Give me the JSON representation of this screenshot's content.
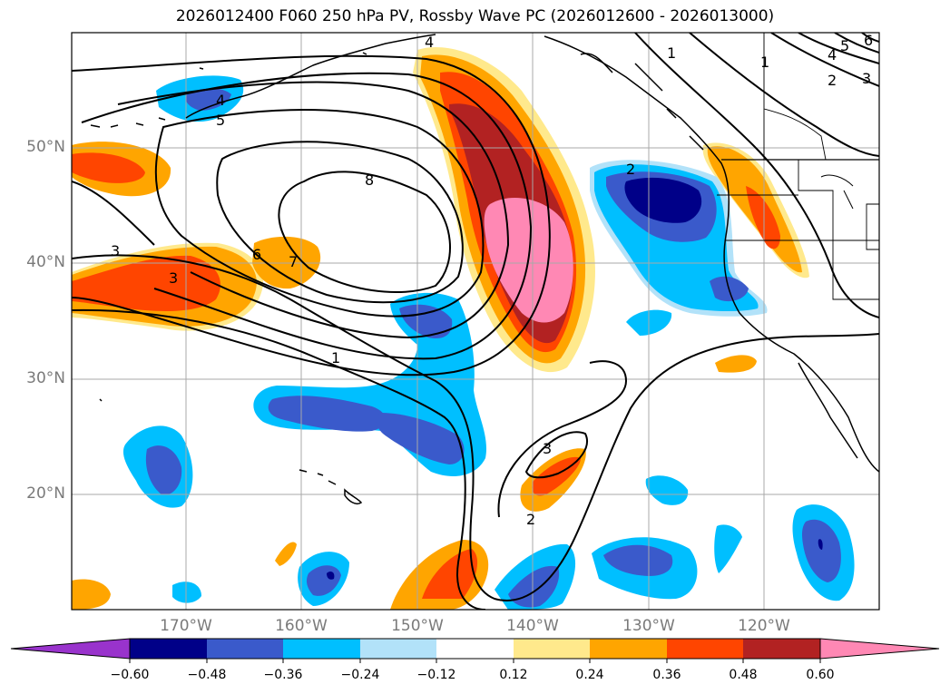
{
  "title": "2026012400 F060 250 hPa PV, Rossby Wave PC (2026012600 - 2026013000)",
  "lat_labels": [
    "50°N",
    "40°N",
    "30°N",
    "20°N"
  ],
  "lon_labels": [
    "170°W",
    "160°W",
    "150°W",
    "140°W",
    "130°W",
    "120°W"
  ],
  "contour_labels": [
    "8",
    "7",
    "6",
    "5",
    "4",
    "4",
    "3",
    "3",
    "3",
    "2",
    "2",
    "2",
    "1",
    "1",
    "1",
    "5",
    "4",
    "6",
    "3"
  ],
  "colorbar": {
    "ticks": [
      "−0.60",
      "−0.48",
      "−0.36",
      "−0.24",
      "−0.12",
      "0.12",
      "0.24",
      "0.36",
      "0.48",
      "0.60"
    ],
    "colors": [
      "#9933cc",
      "#000088",
      "#3a5acb",
      "#00bfff",
      "#b2e2f9",
      "#ffffff",
      "#ffe98c",
      "#ffa500",
      "#ff4500",
      "#b22222",
      "#ff88b4"
    ]
  },
  "colors": {
    "pink": "#ff88b4",
    "darkred": "#b22222",
    "red": "#ff4500",
    "orange": "#ffa500",
    "yellow": "#ffe98c",
    "lightblue": "#b2e2f9",
    "cyan": "#00bfff",
    "blue": "#3a5acb",
    "navy": "#000088"
  }
}
